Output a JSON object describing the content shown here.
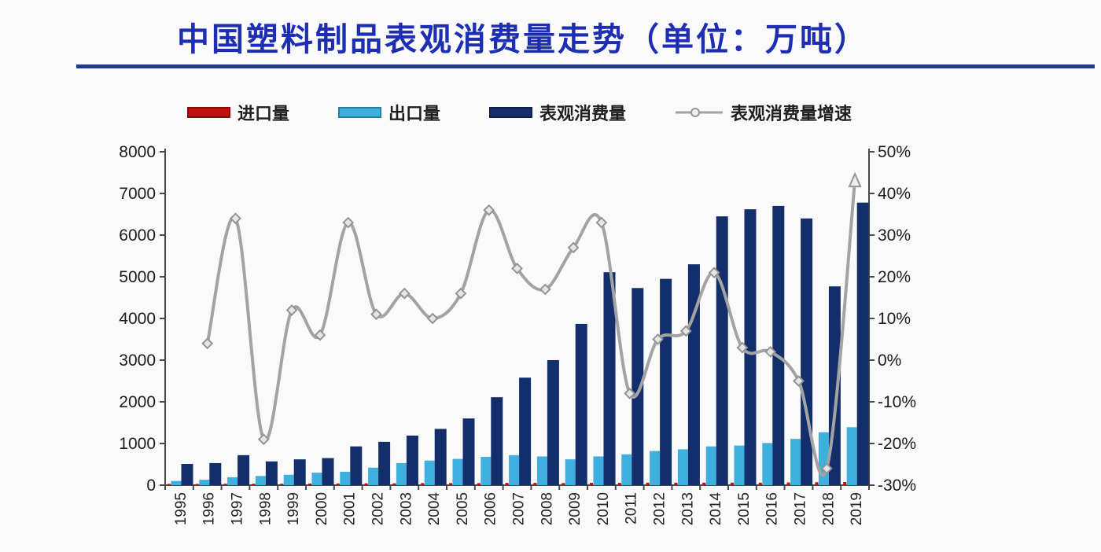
{
  "title": "中国塑料制品表观消费量走势（单位：万吨）",
  "legend": [
    {
      "label": "进口量",
      "marker": "bar-swatch",
      "color": "#c01010"
    },
    {
      "label": "出口量",
      "marker": "bar-swatch",
      "color": "#3eafdf"
    },
    {
      "label": "表观消费量",
      "marker": "bar-swatch",
      "color": "#132f6b"
    },
    {
      "label": "表观消费量增速",
      "marker": "line-marker",
      "color": "#a3a3a3"
    }
  ],
  "colors": {
    "title_blue": "#1e2eb3",
    "rule_blue": "#1d3a94",
    "imports_red": "#c01010",
    "exports_lightblue": "#3eafdf",
    "consumption_navy": "#132f6b",
    "growth_gray": "#a3a3a3",
    "axis": "#4a4a4a",
    "tick_text": "#1b1b1b"
  },
  "chart_data": {
    "type": "bar+line",
    "title": "中国塑料制品表观消费量走势（单位：万吨）",
    "categories": [
      "1995",
      "1996",
      "1997",
      "1998",
      "1999",
      "2000",
      "2001",
      "2002",
      "2003",
      "2004",
      "2005",
      "2006",
      "2007",
      "2008",
      "2009",
      "2010",
      "2011",
      "2012",
      "2013",
      "2014",
      "2015",
      "2016",
      "2017",
      "2018",
      "2019"
    ],
    "series": [
      {
        "key": "imports",
        "name": "进口量",
        "type": "bar",
        "axis": "left",
        "color": "#c01010",
        "values": [
          30,
          30,
          35,
          35,
          35,
          40,
          40,
          45,
          45,
          50,
          50,
          50,
          55,
          55,
          50,
          55,
          55,
          60,
          60,
          60,
          60,
          60,
          65,
          70,
          75
        ]
      },
      {
        "key": "exports",
        "name": "出口量",
        "type": "bar",
        "axis": "left",
        "color": "#3eafdf",
        "values": [
          100,
          130,
          190,
          220,
          250,
          300,
          320,
          420,
          530,
          590,
          630,
          680,
          720,
          690,
          620,
          690,
          740,
          820,
          860,
          930,
          950,
          1010,
          1110,
          1270,
          1390
        ]
      },
      {
        "key": "consumption",
        "name": "表观消费量",
        "type": "bar",
        "axis": "left",
        "color": "#132f6b",
        "values": [
          510,
          530,
          720,
          570,
          620,
          650,
          930,
          1040,
          1190,
          1350,
          1600,
          2110,
          2580,
          3000,
          3870,
          5110,
          4730,
          4950,
          5300,
          6450,
          6620,
          6700,
          6400,
          4770,
          6780
        ]
      },
      {
        "key": "growth",
        "name": "表观消费量增速",
        "type": "line",
        "axis": "right",
        "unit": "%",
        "color": "#a3a3a3",
        "values": [
          null,
          4,
          34,
          -19,
          12,
          6,
          33,
          11,
          16,
          10,
          16,
          36,
          22,
          17,
          27,
          33,
          -8,
          5,
          7,
          21,
          3,
          2,
          -5,
          -26,
          43
        ]
      }
    ],
    "left_axis": {
      "min": 0,
      "max": 8000,
      "step": 1000,
      "ticks": [
        "0",
        "1000",
        "2000",
        "3000",
        "4000",
        "5000",
        "6000",
        "7000",
        "8000"
      ]
    },
    "right_axis": {
      "min": -30,
      "max": 50,
      "step": 10,
      "ticks": [
        "-30%",
        "-20%",
        "-10%",
        "0%",
        "10%",
        "20%",
        "30%",
        "40%",
        "50%"
      ]
    },
    "grid": false,
    "legend_position": "top",
    "x_tick_label_rotation": -90
  }
}
